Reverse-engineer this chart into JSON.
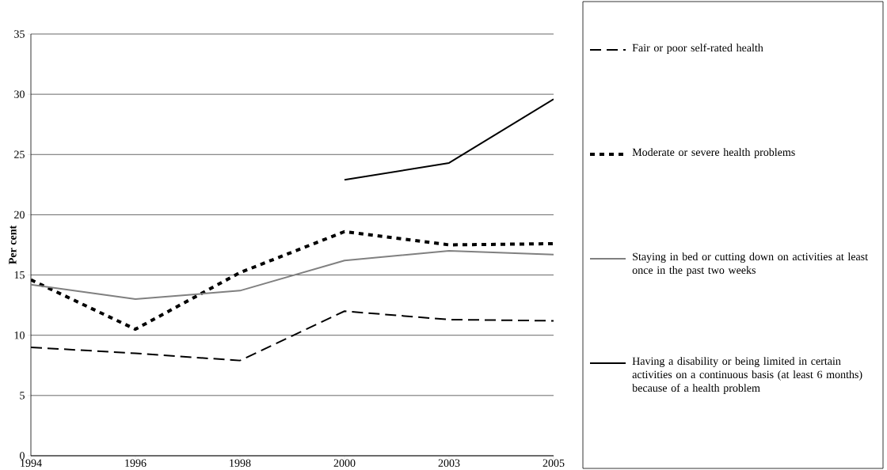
{
  "chart_data": {
    "type": "line",
    "ylabel": "Per cent",
    "categories": [
      "1994",
      "1996",
      "1998",
      "2000",
      "2003",
      "2005"
    ],
    "ylim": [
      0,
      35
    ],
    "yticks": [
      0,
      5,
      10,
      15,
      20,
      25,
      30,
      35
    ],
    "grid": "y",
    "legend": "right",
    "marker": "none",
    "series": [
      {
        "name": "Fair or poor self-rated health",
        "color": "#000000",
        "line_style": "dashed",
        "values": [
          9.0,
          8.5,
          7.9,
          12.0,
          11.3,
          11.2
        ]
      },
      {
        "name": "Moderate or severe health problems",
        "color": "#000000",
        "line_style": "dotted",
        "values": [
          14.6,
          10.5,
          15.2,
          18.6,
          17.5,
          17.6
        ]
      },
      {
        "name": "Staying in bed or cutting down on activities at least once in the past two weeks",
        "color": "#808080",
        "line_style": "solid",
        "values": [
          14.2,
          13.0,
          13.7,
          16.2,
          17.0,
          16.7
        ]
      },
      {
        "name": "Having a disability or being limited in certain activities on a continuous basis (at least 6 months) because of a health problem",
        "color": "#000000",
        "line_style": "solid",
        "values": [
          null,
          null,
          null,
          22.9,
          24.3,
          29.6
        ]
      }
    ]
  }
}
